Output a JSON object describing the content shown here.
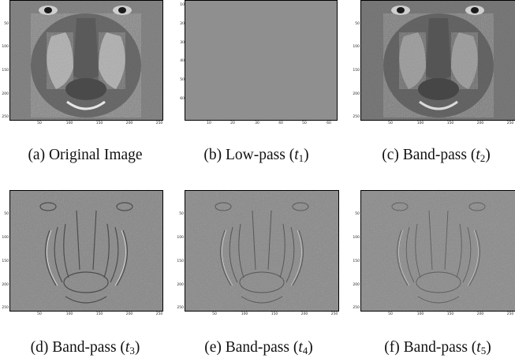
{
  "colors": {
    "flat_gray": "#8f8f8f"
  },
  "panels": [
    {
      "name": "original",
      "letter": "(a)",
      "label": "Original Image",
      "sub": "",
      "yticks": [
        "50",
        "100",
        "150",
        "200",
        "250"
      ],
      "xticks": [
        "50",
        "100",
        "150",
        "200",
        "250"
      ]
    },
    {
      "name": "lowpass",
      "letter": "(b)",
      "label": "Low-pass (",
      "sub": "1",
      "yticks": [
        "10",
        "20",
        "30",
        "40",
        "50",
        "60"
      ],
      "xticks": [
        "10",
        "20",
        "30",
        "40",
        "50",
        "60"
      ]
    },
    {
      "name": "bandpass-t2",
      "letter": "(c)",
      "label": "Band-pass (",
      "sub": "2",
      "yticks": [
        "50",
        "100",
        "150",
        "200",
        "250"
      ],
      "xticks": [
        "50",
        "100",
        "150",
        "200",
        "250"
      ]
    },
    {
      "name": "bandpass-t3",
      "letter": "(d)",
      "label": "Band-pass (",
      "sub": "3",
      "yticks": [
        "50",
        "100",
        "150",
        "200",
        "250"
      ],
      "xticks": [
        "50",
        "100",
        "150",
        "200",
        "250"
      ]
    },
    {
      "name": "bandpass-t4",
      "letter": "(e)",
      "label": "Band-pass (",
      "sub": "4",
      "yticks": [
        "50",
        "100",
        "150",
        "200",
        "250"
      ],
      "xticks": [
        "50",
        "100",
        "150",
        "200",
        "250"
      ]
    },
    {
      "name": "bandpass-t5",
      "letter": "(f)",
      "label": "Band-pass (",
      "sub": "5",
      "yticks": [
        "50",
        "100",
        "150",
        "200",
        "250"
      ],
      "xticks": [
        "50",
        "100",
        "150",
        "200",
        "250"
      ]
    }
  ]
}
